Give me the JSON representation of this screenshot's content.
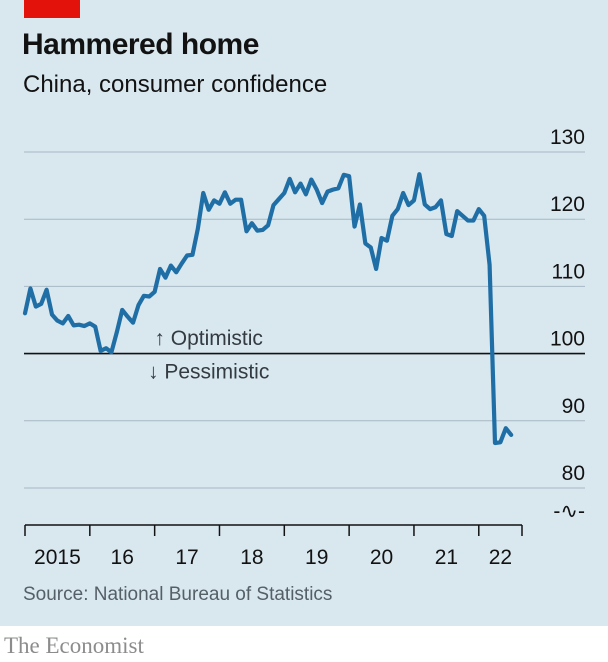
{
  "header": {
    "title": "Hammered home",
    "subtitle": "China, consumer confidence"
  },
  "footer": {
    "source": "Source: National Bureau of Statistics",
    "brand": "The Economist"
  },
  "colors": {
    "panel": "#d9e7ef",
    "line": "#1f6fa6",
    "brand_red": "#e3120b",
    "grid": "#a7b9c4",
    "axis": "#121212"
  },
  "chart_data": {
    "type": "line",
    "title": "Hammered home",
    "subtitle": "China, consumer confidence",
    "ylim": [
      80,
      130
    ],
    "y_ticks": [
      {
        "value": 130,
        "label": "130"
      },
      {
        "value": 120,
        "label": "120"
      },
      {
        "value": 110,
        "label": "110"
      },
      {
        "value": 100,
        "label": "100"
      },
      {
        "value": 90,
        "label": "90"
      },
      {
        "value": 80,
        "label": "80"
      }
    ],
    "axis_break_symbol": "-∿-",
    "baseline": 100,
    "x_range": [
      "2015-01",
      "2022-09"
    ],
    "x_ticks": [
      {
        "date": "2015-01",
        "label": "2015"
      },
      {
        "date": "2016-01",
        "label": "16"
      },
      {
        "date": "2017-01",
        "label": "17"
      },
      {
        "date": "2018-01",
        "label": "18"
      },
      {
        "date": "2019-01",
        "label": "19"
      },
      {
        "date": "2020-01",
        "label": "20"
      },
      {
        "date": "2021-01",
        "label": "21"
      },
      {
        "date": "2022-01",
        "label": "22"
      }
    ],
    "annotations": [
      {
        "text": "↑ Optimistic",
        "x": "2017-11",
        "y": 102.3
      },
      {
        "text": "↓ Pessimistic",
        "x": "2017-11",
        "y": 97.3
      }
    ],
    "grid": "horizontal",
    "series": [
      {
        "color": "#1f6fa6",
        "points": [
          [
            "2015-01",
            106.0
          ],
          [
            "2015-02",
            109.7
          ],
          [
            "2015-03",
            107.0
          ],
          [
            "2015-04",
            107.4
          ],
          [
            "2015-05",
            109.5
          ],
          [
            "2015-06",
            105.8
          ],
          [
            "2015-07",
            104.9
          ],
          [
            "2015-08",
            104.5
          ],
          [
            "2015-09",
            105.6
          ],
          [
            "2015-10",
            104.2
          ],
          [
            "2015-11",
            104.3
          ],
          [
            "2015-12",
            104.1
          ],
          [
            "2016-01",
            104.5
          ],
          [
            "2016-02",
            104.0
          ],
          [
            "2016-03",
            100.4
          ],
          [
            "2016-04",
            100.8
          ],
          [
            "2016-05",
            100.2
          ],
          [
            "2016-06",
            103.2
          ],
          [
            "2016-07",
            106.5
          ],
          [
            "2016-08",
            105.5
          ],
          [
            "2016-09",
            104.6
          ],
          [
            "2016-10",
            107.2
          ],
          [
            "2016-11",
            108.6
          ],
          [
            "2016-12",
            108.5
          ],
          [
            "2017-01",
            109.2
          ],
          [
            "2017-02",
            112.6
          ],
          [
            "2017-03",
            111.3
          ],
          [
            "2017-04",
            113.1
          ],
          [
            "2017-05",
            112.1
          ],
          [
            "2017-06",
            113.4
          ],
          [
            "2017-07",
            114.6
          ],
          [
            "2017-08",
            114.7
          ],
          [
            "2017-09",
            118.6
          ],
          [
            "2017-10",
            123.9
          ],
          [
            "2017-11",
            121.4
          ],
          [
            "2017-12",
            122.8
          ],
          [
            "2018-01",
            122.3
          ],
          [
            "2018-02",
            124.0
          ],
          [
            "2018-03",
            122.3
          ],
          [
            "2018-04",
            122.9
          ],
          [
            "2018-05",
            122.9
          ],
          [
            "2018-06",
            118.2
          ],
          [
            "2018-07",
            119.4
          ],
          [
            "2018-08",
            118.3
          ],
          [
            "2018-09",
            118.4
          ],
          [
            "2018-10",
            119.1
          ],
          [
            "2018-11",
            122.1
          ],
          [
            "2018-12",
            123.0
          ],
          [
            "2019-01",
            123.9
          ],
          [
            "2019-02",
            126.0
          ],
          [
            "2019-03",
            124.0
          ],
          [
            "2019-04",
            125.3
          ],
          [
            "2019-05",
            123.7
          ],
          [
            "2019-06",
            125.9
          ],
          [
            "2019-07",
            124.4
          ],
          [
            "2019-08",
            122.4
          ],
          [
            "2019-09",
            124.1
          ],
          [
            "2019-10",
            124.4
          ],
          [
            "2019-11",
            124.6
          ],
          [
            "2019-12",
            126.6
          ],
          [
            "2020-01",
            126.4
          ],
          [
            "2020-02",
            118.9
          ],
          [
            "2020-03",
            122.2
          ],
          [
            "2020-04",
            116.4
          ],
          [
            "2020-05",
            115.8
          ],
          [
            "2020-06",
            112.6
          ],
          [
            "2020-07",
            117.2
          ],
          [
            "2020-08",
            116.8
          ],
          [
            "2020-09",
            120.5
          ],
          [
            "2020-10",
            121.5
          ],
          [
            "2020-11",
            123.9
          ],
          [
            "2020-12",
            122.1
          ],
          [
            "2021-01",
            122.8
          ],
          [
            "2021-02",
            126.7
          ],
          [
            "2021-03",
            122.2
          ],
          [
            "2021-04",
            121.5
          ],
          [
            "2021-05",
            121.8
          ],
          [
            "2021-06",
            122.8
          ],
          [
            "2021-07",
            117.8
          ],
          [
            "2021-08",
            117.5
          ],
          [
            "2021-09",
            121.2
          ],
          [
            "2021-10",
            120.5
          ],
          [
            "2021-11",
            119.8
          ],
          [
            "2021-12",
            119.8
          ],
          [
            "2022-01",
            121.5
          ],
          [
            "2022-02",
            120.5
          ],
          [
            "2022-03",
            113.2
          ],
          [
            "2022-04",
            86.7
          ],
          [
            "2022-05",
            86.8
          ],
          [
            "2022-06",
            88.9
          ],
          [
            "2022-07",
            87.9
          ]
        ]
      }
    ]
  }
}
